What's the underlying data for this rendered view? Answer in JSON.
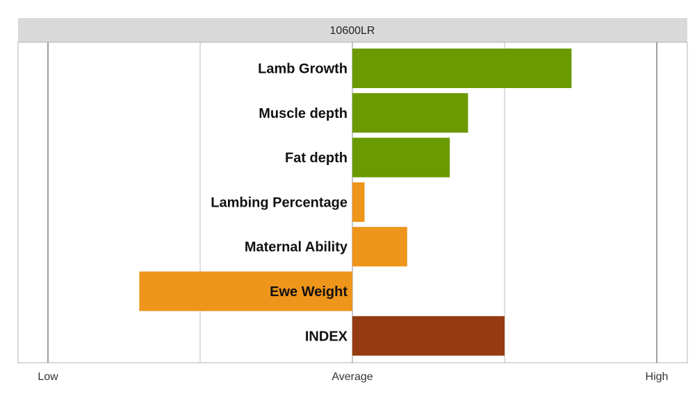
{
  "chart_data": {
    "type": "bar",
    "orientation": "horizontal",
    "title": "10600LR",
    "categories": [
      "Lamb Growth",
      "Muscle depth",
      "Fat depth",
      "Lambing Percentage",
      "Maternal Ability",
      "Ewe Weight",
      "INDEX"
    ],
    "values": [
      72,
      38,
      32,
      4,
      18,
      -70,
      50
    ],
    "colors": [
      "#6a9a00",
      "#6a9a00",
      "#6a9a00",
      "#ee951b",
      "#ee951b",
      "#ee951b",
      "#943b11"
    ],
    "xlim": [
      -100,
      100
    ],
    "x_ticks": [
      {
        "value": -100,
        "label": "Low"
      },
      {
        "value": 0,
        "label": "Average"
      },
      {
        "value": 100,
        "label": "High"
      }
    ],
    "gridlines": [
      -100,
      -50,
      0,
      50,
      100
    ],
    "grid": true,
    "legend": "none"
  }
}
